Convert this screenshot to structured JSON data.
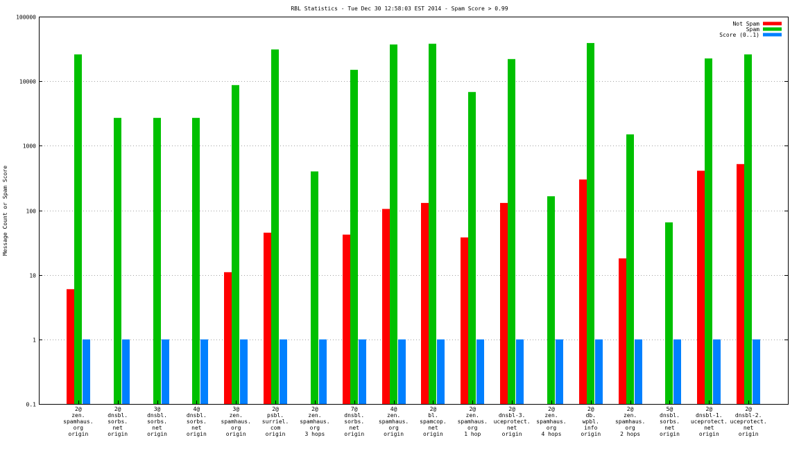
{
  "chart_data": {
    "type": "bar",
    "scale": "log",
    "title": "RBL Statistics - Tue Dec 30 12:58:03 EST 2014 - Spam Score > 0.99",
    "ylabel": "Message Count or Spam Score",
    "xlabel": "",
    "ylim": [
      0.1,
      100000
    ],
    "y_ticks": [
      "0.1",
      "1",
      "10",
      "100",
      "1000",
      "10000",
      "100000"
    ],
    "grid": true,
    "legend_position": "top-right",
    "categories": [
      [
        "2@",
        "zen.",
        "spamhaus.",
        "org",
        "origin"
      ],
      [
        "2@",
        "dnsbl.",
        "sorbs.",
        "net",
        "origin"
      ],
      [
        "3@",
        "dnsbl.",
        "sorbs.",
        "net",
        "origin"
      ],
      [
        "4@",
        "dnsbl.",
        "sorbs.",
        "net",
        "origin"
      ],
      [
        "3@",
        "zen.",
        "spamhaus.",
        "org",
        "origin"
      ],
      [
        "2@",
        "psbl.",
        "surriel.",
        "com",
        "origin"
      ],
      [
        "2@",
        "zen.",
        "spamhaus.",
        "org",
        "3 hops"
      ],
      [
        "7@",
        "dnsbl.",
        "sorbs.",
        "net",
        "origin"
      ],
      [
        "4@",
        "zen.",
        "spamhaus.",
        "org",
        "origin"
      ],
      [
        "2@",
        "bl.",
        "spamcop.",
        "net",
        "origin"
      ],
      [
        "2@",
        "zen.",
        "spamhaus.",
        "org",
        "1 hop"
      ],
      [
        "2@",
        "dnsbl-3.",
        "uceprotect.",
        "net",
        "origin"
      ],
      [
        "2@",
        "zen.",
        "spamhaus.",
        "org",
        "4 hops"
      ],
      [
        "2@",
        "db.",
        "wpbl.",
        "info",
        "origin"
      ],
      [
        "2@",
        "zen.",
        "spamhaus.",
        "org",
        "2 hops"
      ],
      [
        "5@",
        "dnsbl.",
        "sorbs.",
        "net",
        "origin"
      ],
      [
        "2@",
        "dnsbl-1.",
        "uceprotect.",
        "net",
        "origin"
      ],
      [
        "2@",
        "dnsbl-2.",
        "uceprotect.",
        "net",
        "origin"
      ]
    ],
    "series": [
      {
        "name": "Not Spam",
        "color": "#ff0000",
        "values": [
          6,
          0,
          0,
          0,
          11,
          45,
          0,
          42,
          105,
          130,
          38,
          130,
          0,
          300,
          18,
          0,
          410,
          520
        ]
      },
      {
        "name": "Spam",
        "color": "#00c000",
        "values": [
          26000,
          2700,
          2700,
          2700,
          8700,
          31000,
          400,
          15000,
          37000,
          38000,
          6800,
          22000,
          165,
          39000,
          1500,
          65,
          22500,
          26000
        ]
      },
      {
        "name": "Score (0..1)",
        "color": "#0080ff",
        "values": [
          1,
          1,
          1,
          1,
          1,
          1,
          1,
          1,
          1,
          1,
          1,
          1,
          1,
          1,
          1,
          1,
          1,
          1
        ]
      }
    ]
  }
}
